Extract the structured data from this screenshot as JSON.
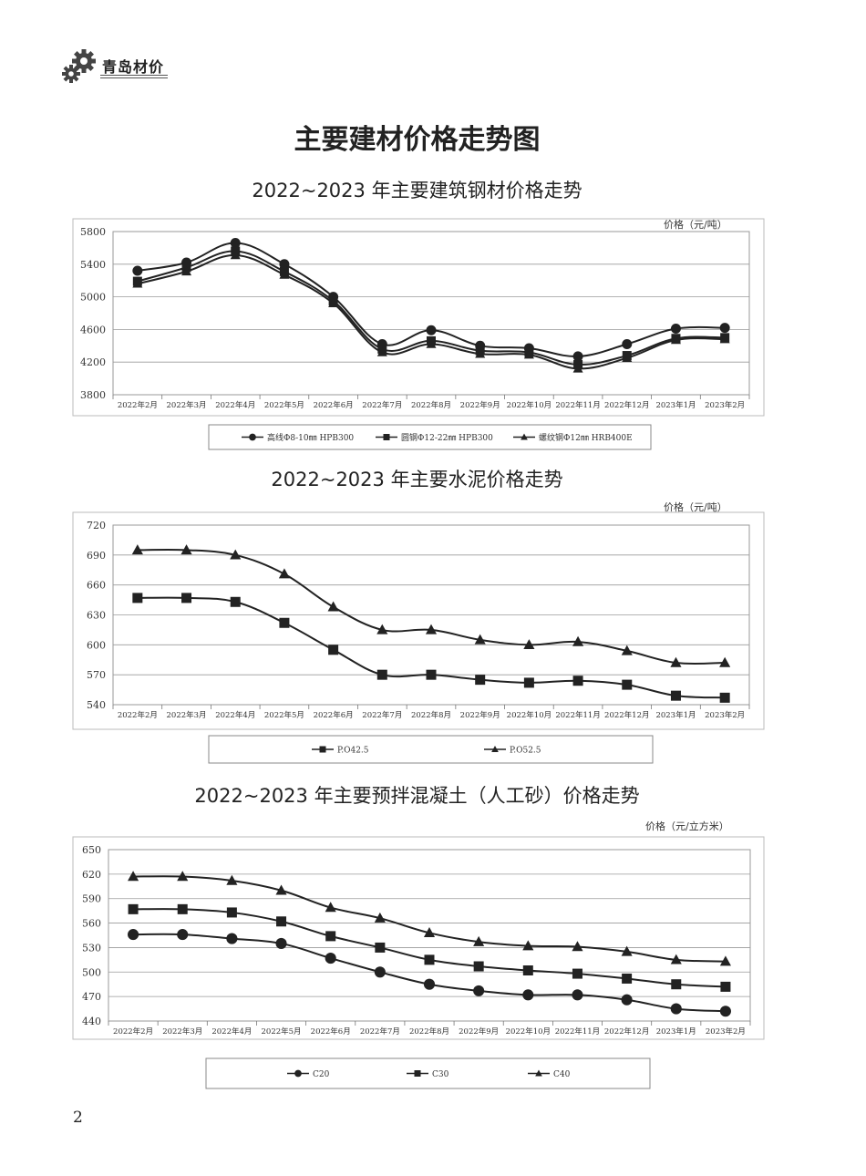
{
  "header": {
    "brand": "青岛材价",
    "logo_icon": "gear-icon"
  },
  "page": {
    "title": "主要建材价格走势图",
    "number": "2"
  },
  "chart_data": [
    {
      "id": "steel",
      "type": "line",
      "title": "2022~2023 年主要建筑钢材价格走势",
      "unit_label": "价格（元/吨）",
      "categories": [
        "2022年2月",
        "2022年3月",
        "2022年4月",
        "2022年5月",
        "2022年6月",
        "2022年7月",
        "2022年8月",
        "2022年9月",
        "2022年10月",
        "2022年11月",
        "2022年12月",
        "2023年1月",
        "2023年2月"
      ],
      "ylim": [
        3800,
        5800
      ],
      "yticks": [
        3800,
        4200,
        4600,
        5000,
        5400,
        5800
      ],
      "grid": true,
      "legend_position": "bottom",
      "series": [
        {
          "name": "高线Φ8-10㎜ HPB300",
          "marker": "circle",
          "values": [
            5320,
            5420,
            5660,
            5400,
            5000,
            4420,
            4590,
            4400,
            4370,
            4270,
            4420,
            4610,
            4620
          ]
        },
        {
          "name": "圆钢Φ12-22㎜ HPB300",
          "marker": "square",
          "values": [
            5190,
            5360,
            5560,
            5310,
            4950,
            4360,
            4460,
            4340,
            4320,
            4170,
            4280,
            4490,
            4500
          ]
        },
        {
          "name": "螺纹钢Φ12㎜ HRB400E",
          "marker": "triangle",
          "values": [
            5160,
            5310,
            5510,
            5270,
            4920,
            4320,
            4420,
            4300,
            4290,
            4120,
            4250,
            4470,
            4480
          ]
        }
      ]
    },
    {
      "id": "cement",
      "type": "line",
      "title": "2022~2023 年主要水泥价格走势",
      "unit_label": "价格（元/吨）",
      "categories": [
        "2022年2月",
        "2022年3月",
        "2022年4月",
        "2022年5月",
        "2022年6月",
        "2022年7月",
        "2022年8月",
        "2022年9月",
        "2022年10月",
        "2022年11月",
        "2022年12月",
        "2023年1月",
        "2023年2月"
      ],
      "ylim": [
        540,
        720
      ],
      "yticks": [
        540,
        570,
        600,
        630,
        660,
        690,
        720
      ],
      "grid": true,
      "legend_position": "bottom",
      "series": [
        {
          "name": "P.O42.5",
          "marker": "square",
          "values": [
            647,
            647,
            643,
            622,
            595,
            570,
            570,
            565,
            562,
            564,
            560,
            549,
            547
          ]
        },
        {
          "name": "P.O52.5",
          "marker": "triangle",
          "values": [
            695,
            695,
            690,
            671,
            638,
            615,
            615,
            605,
            600,
            603,
            594,
            582,
            582
          ]
        }
      ]
    },
    {
      "id": "concrete",
      "type": "line",
      "title": "2022~2023 年主要预拌混凝土（人工砂）价格走势",
      "unit_label": "价格（元/立方米）",
      "categories": [
        "2022年2月",
        "2022年3月",
        "2022年4月",
        "2022年5月",
        "2022年6月",
        "2022年7月",
        "2022年8月",
        "2022年9月",
        "2022年10月",
        "2022年11月",
        "2022年12月",
        "2023年1月",
        "2023年2月"
      ],
      "ylim": [
        440,
        650
      ],
      "yticks": [
        440,
        470,
        500,
        530,
        560,
        590,
        620,
        650
      ],
      "grid": true,
      "legend_position": "bottom",
      "series": [
        {
          "name": "C20",
          "marker": "circle",
          "values": [
            546,
            546,
            541,
            535,
            517,
            500,
            485,
            477,
            472,
            472,
            466,
            455,
            452
          ]
        },
        {
          "name": "C30",
          "marker": "square",
          "values": [
            577,
            577,
            573,
            562,
            544,
            530,
            515,
            507,
            502,
            498,
            492,
            485,
            482
          ]
        },
        {
          "name": "C40",
          "marker": "triangle",
          "values": [
            617,
            617,
            612,
            600,
            579,
            566,
            548,
            537,
            532,
            531,
            525,
            515,
            513
          ]
        }
      ]
    }
  ]
}
